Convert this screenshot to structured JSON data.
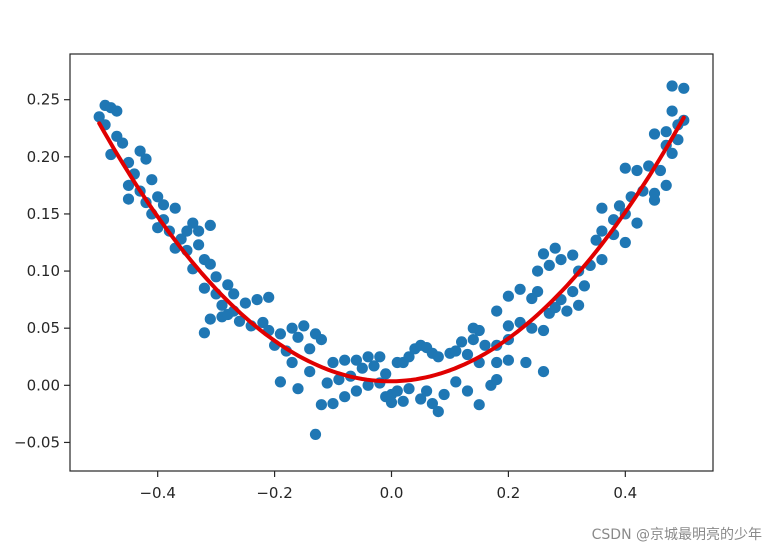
{
  "watermark": "CSDN @京城最明亮的少年",
  "chart_data": {
    "type": "scatter",
    "title": "",
    "xlabel": "",
    "ylabel": "",
    "xlim": [
      -0.55,
      0.55
    ],
    "ylim": [
      -0.075,
      0.29
    ],
    "grid": false,
    "xticks": [
      "−0.4",
      "−0.2",
      "0.0",
      "0.2",
      "0.4"
    ],
    "xtick_values": [
      -0.4,
      -0.2,
      0.0,
      0.2,
      0.4
    ],
    "yticks": [
      "−0.05",
      "0.00",
      "0.05",
      "0.10",
      "0.15",
      "0.20",
      "0.25"
    ],
    "ytick_values": [
      -0.05,
      0.0,
      0.05,
      0.1,
      0.15,
      0.2,
      0.25
    ],
    "colors": {
      "points": "#1f77b4",
      "fit_line": "#e00000",
      "axes": "#262626"
    },
    "series": [
      {
        "kind": "scatter",
        "points": [
          [
            -0.49,
            0.245
          ],
          [
            -0.48,
            0.243
          ],
          [
            -0.47,
            0.24
          ],
          [
            -0.5,
            0.235
          ],
          [
            -0.49,
            0.228
          ],
          [
            -0.47,
            0.218
          ],
          [
            -0.46,
            0.212
          ],
          [
            -0.48,
            0.202
          ],
          [
            -0.45,
            0.195
          ],
          [
            -0.43,
            0.205
          ],
          [
            -0.42,
            0.198
          ],
          [
            -0.44,
            0.185
          ],
          [
            -0.45,
            0.175
          ],
          [
            -0.43,
            0.17
          ],
          [
            -0.41,
            0.18
          ],
          [
            -0.45,
            0.163
          ],
          [
            -0.42,
            0.16
          ],
          [
            -0.4,
            0.165
          ],
          [
            -0.39,
            0.158
          ],
          [
            -0.41,
            0.15
          ],
          [
            -0.39,
            0.145
          ],
          [
            -0.37,
            0.155
          ],
          [
            -0.4,
            0.138
          ],
          [
            -0.38,
            0.135
          ],
          [
            -0.36,
            0.128
          ],
          [
            -0.35,
            0.135
          ],
          [
            -0.34,
            0.142
          ],
          [
            -0.33,
            0.135
          ],
          [
            -0.31,
            0.14
          ],
          [
            -0.37,
            0.12
          ],
          [
            -0.35,
            0.118
          ],
          [
            -0.33,
            0.123
          ],
          [
            -0.32,
            0.11
          ],
          [
            -0.34,
            0.102
          ],
          [
            -0.31,
            0.106
          ],
          [
            -0.3,
            0.095
          ],
          [
            -0.32,
            0.085
          ],
          [
            -0.3,
            0.08
          ],
          [
            -0.28,
            0.088
          ],
          [
            -0.27,
            0.08
          ],
          [
            -0.29,
            0.07
          ],
          [
            -0.27,
            0.065
          ],
          [
            -0.25,
            0.072
          ],
          [
            -0.23,
            0.075
          ],
          [
            -0.21,
            0.077
          ],
          [
            -0.31,
            0.058
          ],
          [
            -0.29,
            0.06
          ],
          [
            -0.28,
            0.062
          ],
          [
            -0.26,
            0.056
          ],
          [
            -0.24,
            0.052
          ],
          [
            -0.32,
            0.046
          ],
          [
            -0.22,
            0.055
          ],
          [
            -0.21,
            0.048
          ],
          [
            -0.19,
            0.045
          ],
          [
            -0.17,
            0.05
          ],
          [
            -0.15,
            0.052
          ],
          [
            -0.16,
            0.042
          ],
          [
            -0.13,
            0.045
          ],
          [
            -0.2,
            0.035
          ],
          [
            -0.18,
            0.03
          ],
          [
            -0.14,
            0.032
          ],
          [
            -0.12,
            0.04
          ],
          [
            -0.17,
            0.02
          ],
          [
            -0.14,
            0.012
          ],
          [
            -0.1,
            0.02
          ],
          [
            -0.08,
            0.022
          ],
          [
            -0.06,
            0.022
          ],
          [
            -0.04,
            0.025
          ],
          [
            -0.02,
            0.025
          ],
          [
            -0.19,
            0.003
          ],
          [
            -0.16,
            -0.003
          ],
          [
            -0.11,
            0.002
          ],
          [
            -0.09,
            0.005
          ],
          [
            -0.07,
            0.008
          ],
          [
            -0.05,
            0.015
          ],
          [
            -0.03,
            0.017
          ],
          [
            -0.01,
            0.01
          ],
          [
            -0.12,
            -0.017
          ],
          [
            -0.1,
            -0.016
          ],
          [
            -0.08,
            -0.01
          ],
          [
            -0.06,
            -0.005
          ],
          [
            -0.04,
            0.0
          ],
          [
            -0.02,
            0.002
          ],
          [
            -0.01,
            -0.01
          ],
          [
            0.0,
            -0.008
          ],
          [
            0.01,
            -0.005
          ],
          [
            0.03,
            -0.003
          ],
          [
            -0.13,
            -0.043
          ],
          [
            0.0,
            -0.015
          ],
          [
            0.02,
            -0.014
          ],
          [
            0.05,
            -0.012
          ],
          [
            0.07,
            -0.016
          ],
          [
            0.08,
            -0.023
          ],
          [
            0.06,
            -0.005
          ],
          [
            0.09,
            -0.008
          ],
          [
            0.11,
            0.003
          ],
          [
            0.13,
            -0.005
          ],
          [
            0.15,
            -0.017
          ],
          [
            0.17,
            0.0
          ],
          [
            0.18,
            0.005
          ],
          [
            0.01,
            0.02
          ],
          [
            0.02,
            0.02
          ],
          [
            0.03,
            0.025
          ],
          [
            0.04,
            0.032
          ],
          [
            0.05,
            0.035
          ],
          [
            0.06,
            0.033
          ],
          [
            0.07,
            0.028
          ],
          [
            0.08,
            0.025
          ],
          [
            0.1,
            0.028
          ],
          [
            0.11,
            0.03
          ],
          [
            0.13,
            0.027
          ],
          [
            0.12,
            0.038
          ],
          [
            0.14,
            0.04
          ],
          [
            0.15,
            0.048
          ],
          [
            0.14,
            0.05
          ],
          [
            0.16,
            0.035
          ],
          [
            0.18,
            0.035
          ],
          [
            0.2,
            0.04
          ],
          [
            0.15,
            0.02
          ],
          [
            0.18,
            0.02
          ],
          [
            0.2,
            0.022
          ],
          [
            0.23,
            0.02
          ],
          [
            0.26,
            0.012
          ],
          [
            0.2,
            0.052
          ],
          [
            0.22,
            0.055
          ],
          [
            0.24,
            0.05
          ],
          [
            0.26,
            0.048
          ],
          [
            0.18,
            0.065
          ],
          [
            0.2,
            0.078
          ],
          [
            0.22,
            0.084
          ],
          [
            0.24,
            0.076
          ],
          [
            0.25,
            0.082
          ],
          [
            0.27,
            0.063
          ],
          [
            0.28,
            0.068
          ],
          [
            0.3,
            0.065
          ],
          [
            0.32,
            0.07
          ],
          [
            0.29,
            0.075
          ],
          [
            0.31,
            0.082
          ],
          [
            0.33,
            0.087
          ],
          [
            0.25,
            0.1
          ],
          [
            0.27,
            0.105
          ],
          [
            0.29,
            0.11
          ],
          [
            0.31,
            0.114
          ],
          [
            0.26,
            0.115
          ],
          [
            0.28,
            0.12
          ],
          [
            0.32,
            0.1
          ],
          [
            0.34,
            0.105
          ],
          [
            0.36,
            0.11
          ],
          [
            0.35,
            0.127
          ],
          [
            0.36,
            0.135
          ],
          [
            0.38,
            0.132
          ],
          [
            0.4,
            0.125
          ],
          [
            0.38,
            0.145
          ],
          [
            0.4,
            0.15
          ],
          [
            0.42,
            0.142
          ],
          [
            0.36,
            0.155
          ],
          [
            0.39,
            0.157
          ],
          [
            0.41,
            0.165
          ],
          [
            0.43,
            0.17
          ],
          [
            0.45,
            0.168
          ],
          [
            0.47,
            0.175
          ],
          [
            0.42,
            0.188
          ],
          [
            0.44,
            0.192
          ],
          [
            0.46,
            0.188
          ],
          [
            0.4,
            0.19
          ],
          [
            0.45,
            0.162
          ],
          [
            0.48,
            0.203
          ],
          [
            0.47,
            0.21
          ],
          [
            0.49,
            0.215
          ],
          [
            0.45,
            0.22
          ],
          [
            0.47,
            0.222
          ],
          [
            0.49,
            0.228
          ],
          [
            0.48,
            0.24
          ],
          [
            0.5,
            0.232
          ],
          [
            0.48,
            0.262
          ],
          [
            0.5,
            0.26
          ]
        ]
      },
      {
        "kind": "line",
        "fit": {
          "x": [
            -0.5,
            0.5
          ],
          "coefficients_quadratic": [
            0.9133,
            0.005,
            0.0035
          ]
        }
      }
    ]
  }
}
